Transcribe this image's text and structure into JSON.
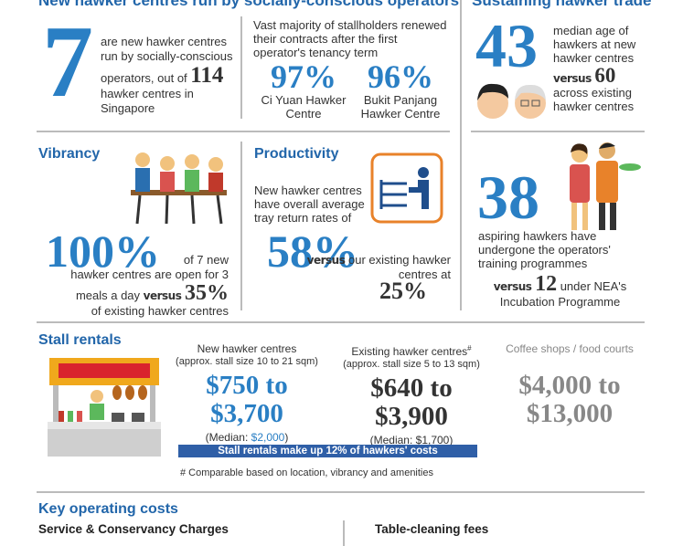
{
  "headings": {
    "left": "New hawker centres run by socially-conscious operators",
    "right": "Sustaining hawker trade"
  },
  "operators": {
    "count": "7",
    "text_1": "are new hawker centres run by socially-conscious operators, out of",
    "total": "114",
    "text_2": "hawker centres in Singapore"
  },
  "renewals": {
    "text": "Vast majority of stallholders renewed their contracts after the first operator's tenancy term",
    "centres": [
      {
        "value": "97%",
        "name": "Ci Yuan Hawker Centre"
      },
      {
        "value": "96%",
        "name": "Bukit Panjang Hawker Centre"
      }
    ]
  },
  "age": {
    "value": "43",
    "text": "median age of hawkers at new hawker centres",
    "versus": "versus",
    "compare": "60",
    "text_2": "across existing hawker centres"
  },
  "vibrancy": {
    "title": "Vibrancy",
    "value": "100%",
    "text_1": "of 7 new",
    "text_2": "hawker centres are open for 3 meals a day",
    "versus": "versus",
    "compare": "35%",
    "text_3": "of existing hawker centres"
  },
  "productivity": {
    "title": "Productivity",
    "text": "New hawker centres have overall average tray return rates of",
    "value": "58%",
    "versus": "versus",
    "text_2": "our existing hawker centres at",
    "compare": "25%"
  },
  "training": {
    "value": "38",
    "text": "aspiring hawkers have undergone the operators' training programmes",
    "versus": "versus",
    "compare": "12",
    "text_2": "under NEA's Incubation Programme"
  },
  "stall_rentals": {
    "title": "Stall rentals",
    "columns": [
      {
        "name": "New hawker centres",
        "size": "(approx. stall size 10 to 21 sqm)",
        "range_1": "$750 to",
        "range_2": "$3,700",
        "median_label": "(Median: ",
        "median": "$2,000",
        "median_end": ")"
      },
      {
        "name": "Existing hawker centres",
        "note_mark": "#",
        "size": "(approx. stall size 5 to 13 sqm)",
        "range_1": "$640 to",
        "range_2": "$3,900",
        "median_label": "(Median: ",
        "median": "$1,700",
        "median_end": ")"
      },
      {
        "name": "Coffee shops / food courts",
        "range_1": "$4,000 to",
        "range_2": "$13,000"
      }
    ],
    "banner": "Stall rentals make up 12% of hawkers' costs",
    "footnote": "# Comparable based on location, vibrancy and amenities"
  },
  "key_costs": {
    "title": "Key operating costs",
    "items": [
      "Service & Conservancy Charges",
      "Table-cleaning fees"
    ]
  }
}
